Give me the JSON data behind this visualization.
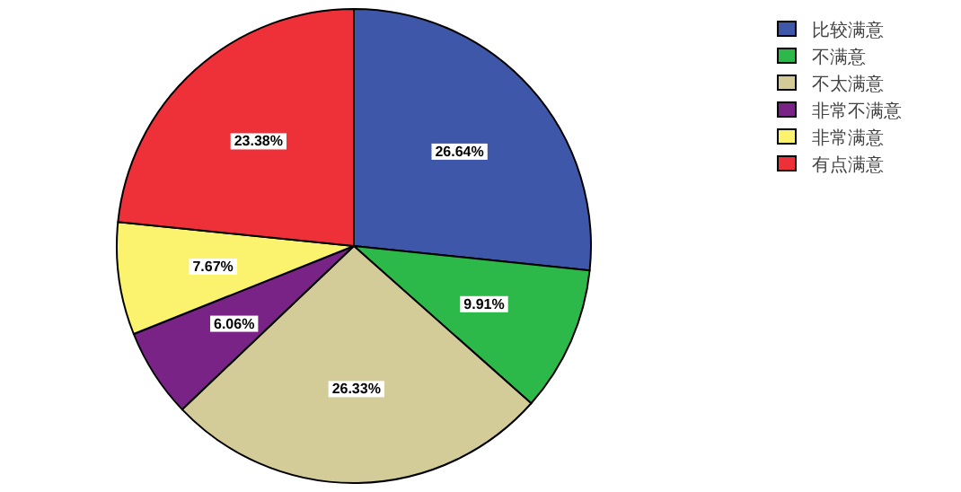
{
  "chart_data": {
    "type": "pie",
    "categories": [
      "比较满意",
      "不满意",
      "不太满意",
      "非常不满意",
      "非常满意",
      "有点满意"
    ],
    "values": [
      26.64,
      9.91,
      26.33,
      6.06,
      7.67,
      23.38
    ],
    "colors": [
      "#3f57a8",
      "#2db84a",
      "#d4cc98",
      "#7a2387",
      "#fbf36e",
      "#ee3038"
    ],
    "value_labels": [
      "26.64%",
      "9.91%",
      "26.33%",
      "6.06%",
      "7.67%",
      "23.38%"
    ],
    "legend": "top right"
  }
}
